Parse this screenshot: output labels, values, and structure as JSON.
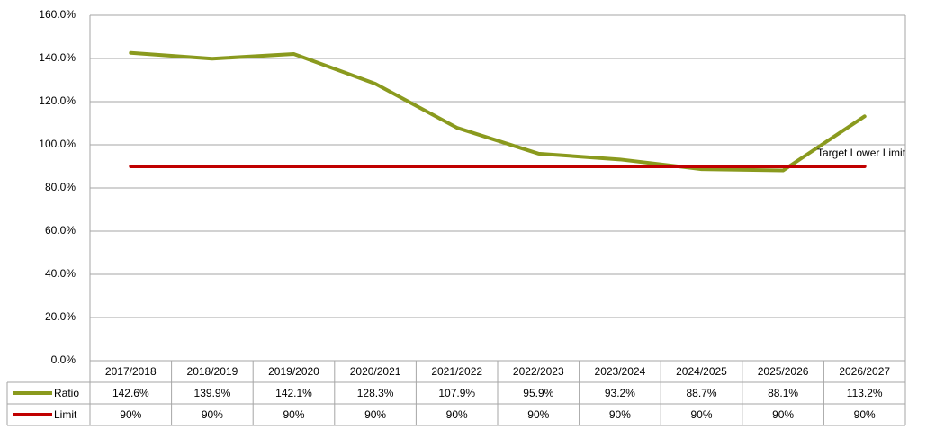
{
  "chart_data": {
    "type": "line",
    "categories": [
      "2017/2018",
      "2018/2019",
      "2019/2020",
      "2020/2021",
      "2021/2022",
      "2022/2023",
      "2023/2024",
      "2024/2025",
      "2025/2026",
      "2026/2027"
    ],
    "series": [
      {
        "name": "Ratio",
        "color": "#8a9a1e",
        "values": [
          142.6,
          139.9,
          142.1,
          128.3,
          107.9,
          95.9,
          93.2,
          88.7,
          88.1,
          113.2
        ],
        "value_labels": [
          "142.6%",
          "139.9%",
          "142.1%",
          "128.3%",
          "107.9%",
          "95.9%",
          "93.2%",
          "88.7%",
          "88.1%",
          "113.2%"
        ]
      },
      {
        "name": "Limit",
        "color": "#c00000",
        "values": [
          90,
          90,
          90,
          90,
          90,
          90,
          90,
          90,
          90,
          90
        ],
        "value_labels": [
          "90%",
          "90%",
          "90%",
          "90%",
          "90%",
          "90%",
          "90%",
          "90%",
          "90%",
          "90%"
        ]
      }
    ],
    "annotations": [
      "Target Lower Limit"
    ],
    "ylim": [
      0,
      160
    ],
    "yticks": [
      {
        "value": 0,
        "label": "0.0%"
      },
      {
        "value": 20,
        "label": "20.0%"
      },
      {
        "value": 40,
        "label": "40.0%"
      },
      {
        "value": 60,
        "label": "60.0%"
      },
      {
        "value": 80,
        "label": "80.0%"
      },
      {
        "value": 100,
        "label": "100.0%"
      },
      {
        "value": 120,
        "label": "120.0%"
      },
      {
        "value": 140,
        "label": "140.0%"
      },
      {
        "value": 160,
        "label": "160.0%"
      }
    ],
    "grid": true
  }
}
